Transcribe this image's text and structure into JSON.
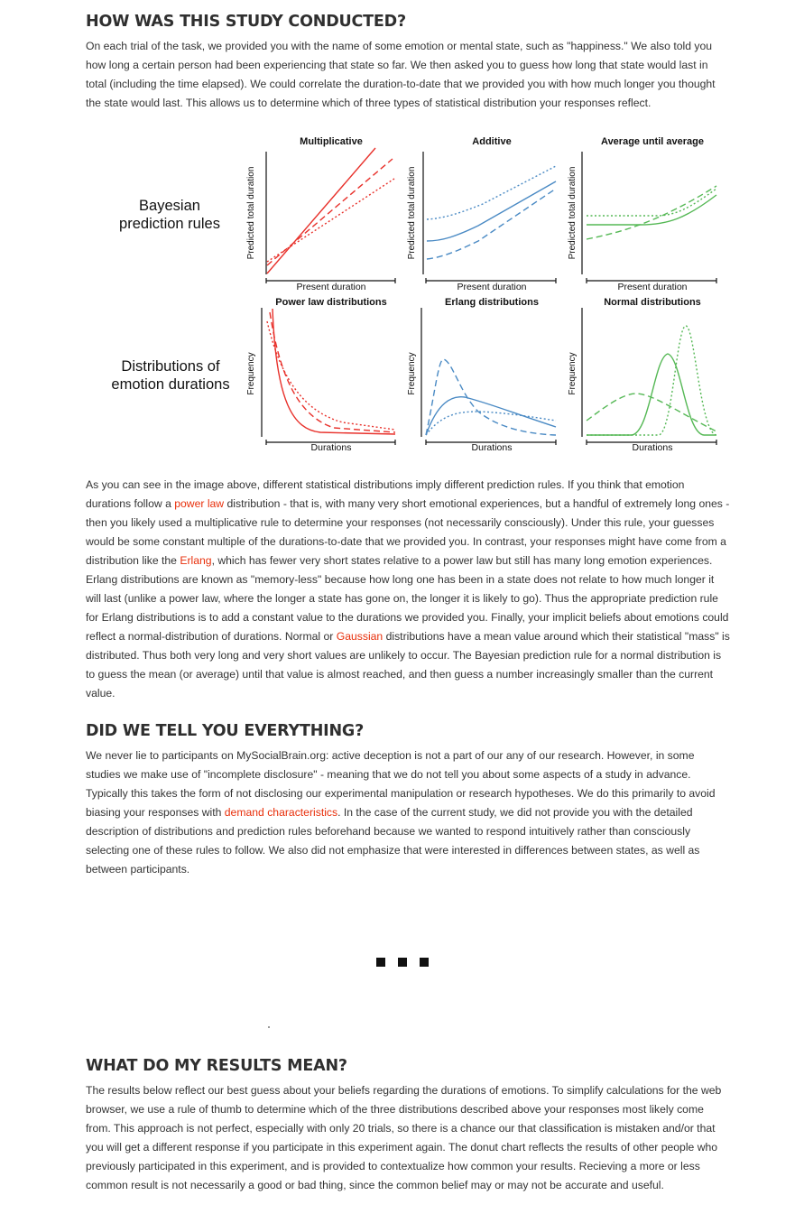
{
  "section1": {
    "heading": "HOW WAS THIS STUDY CONDUCTED?",
    "body": "On each trial of the task, we provided you with the name of some emotion or mental state, such as \"happiness.\" We also told you how long a certain person had been experiencing that state so far. We then asked you to guess how long that state would last in total (including the time elapsed). We could correlate the duration-to-date that we provided you with how much longer you thought the state would last. This allows us to determine which of three types of statistical distribution your responses reflect."
  },
  "figure": {
    "row_labels": [
      {
        "line1": "Bayesian",
        "line2": "prediction rules"
      },
      {
        "line1": "Distributions of",
        "line2": "emotion durations"
      }
    ],
    "top_titles": [
      "Multiplicative",
      "Additive",
      "Average until average"
    ],
    "bottom_titles": [
      "Power law distributions",
      "Erlang distributions",
      "Normal distributions"
    ],
    "top_ylabel": "Predicted total duration",
    "top_xlabel": "Present duration",
    "bottom_ylabel": "Frequency",
    "bottom_xlabel": "Durations",
    "colors": {
      "red": "#e8312b",
      "blue": "#4a8ac4",
      "green": "#55b855"
    }
  },
  "section2": {
    "p1": "As you can see in the image above, different statistical distributions imply different prediction rules. If you think that emotion durations follow a ",
    "link1": "power law",
    "p2": " distribution - that is, with many very short emotional experiences, but a handful of extremely long ones - then you likely used a multiplicative rule to determine your responses (not necessarily consciously). Under this rule, your guesses would be some constant multiple of the durations-to-date that we provided you. In contrast, your responses might have come from a distribution like the ",
    "link2": "Erlang",
    "p3": ", which has fewer very short states relative to a power law but still has many long emotion experiences. Erlang distributions are known as \"memory-less\" because how long one has been in a state does not relate to how much longer it will last (unlike a power law, where the longer a state has gone on, the longer it is likely to go). Thus the appropriate prediction rule for Erlang distributions is to add a constant value to the durations we provided you. Finally, your implicit beliefs about emotions could reflect a normal-distribution of durations. Normal or ",
    "link3": "Gaussian",
    "p4": " distributions have a mean value around which their statistical \"mass\" is distributed. Thus both very long and very short values are unlikely to occur. The Bayesian prediction rule for a normal distribution is to guess the mean (or average) until that value is almost reached, and then guess a number increasingly smaller than the current value."
  },
  "section3": {
    "heading": "DID WE TELL YOU EVERYTHING?",
    "p1": "We never lie to participants on MySocialBrain.org: active deception is not a part of our any of our research. However, in some studies we make use of \"incomplete disclosure\" - meaning that we do not tell you about some aspects of a study in advance. Typically this takes the form of not disclosing our experimental manipulation or research hypotheses. We do this primarily to avoid biasing your responses with ",
    "link1": "demand characteristics",
    "p2": ". In the case of the current study, we did not provide you with the detailed description of distributions and prediction rules beforehand because we wanted to respond intuitively rather than consciously selecting one of these rules to follow. We also did not emphasize that were interested in differences between states, as well as between participants."
  },
  "section4": {
    "heading": "WHAT DO MY RESULTS MEAN?",
    "body": "The results below reflect our best guess about your beliefs regarding the durations of emotions. To simplify calculations for the web browser, we use a rule of thumb to determine which of the three distributions described above your responses most likely come from. This approach is not perfect, especially with only 20 trials, so there is a chance our that classification is mistaken and/or that you will get a different response if you participate in this experiment again. The donut chart reflects the results of other people who previously participated in this experiment, and is provided to contextualize how common your results. Recieving a more or less common result is not necessarily a good or bad thing, since the common belief may or may not be accurate and useful."
  }
}
